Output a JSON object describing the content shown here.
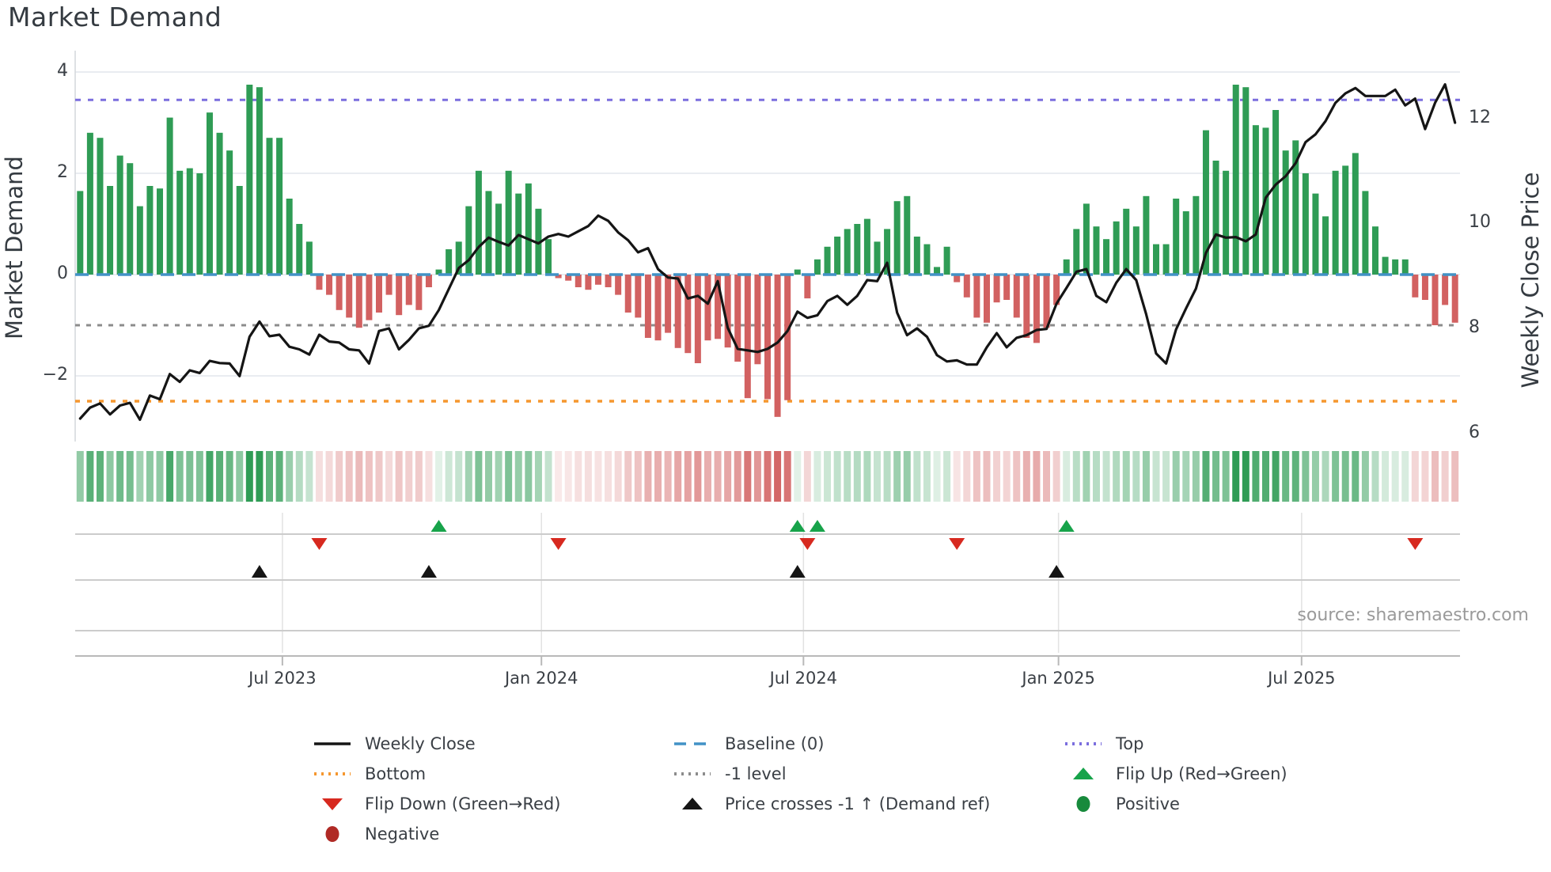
{
  "title": "Market Demand",
  "source_note": "source: sharemaestro.com",
  "axes": {
    "left": {
      "label": "Market Demand",
      "ticks": [
        {
          "label": "4",
          "value": 4
        },
        {
          "label": "2",
          "value": 2
        },
        {
          "label": "0",
          "value": 0
        },
        {
          "label": "−2",
          "value": -2
        }
      ]
    },
    "right": {
      "label": "Weekly Close Price",
      "ticks": [
        {
          "label": "12",
          "value": 12
        },
        {
          "label": "10",
          "value": 10
        },
        {
          "label": "8",
          "value": 8
        },
        {
          "label": "6",
          "value": 6
        }
      ]
    },
    "x": {
      "ticks": [
        {
          "label": "Jul 2023",
          "week": 20.3
        },
        {
          "label": "Jan 2024",
          "week": 46.3
        },
        {
          "label": "Jul 2024",
          "week": 72.6
        },
        {
          "label": "Jan 2025",
          "week": 98.2
        },
        {
          "label": "Jul 2025",
          "week": 122.6
        }
      ]
    }
  },
  "colors": {
    "bar_positive": "#2f9c55",
    "bar_negative": "#d26161",
    "price_line": "#151515",
    "baseline": "#4292c6",
    "top_line": "#7b6ede",
    "bottom_line": "#f5972f",
    "minus1_line": "#8c8c8c",
    "flip_up": "#17a34a",
    "flip_down": "#d7291f",
    "positive_dot": "#178a3c",
    "negative_dot": "#b02a25",
    "gridline": "#e9ecf1",
    "row_line": "#cccccc",
    "spine": "#b9b9b9",
    "text": "#3a3f45",
    "muted_text": "#9a9a9a"
  },
  "legend": {
    "columns": [
      {
        "items": [
          {
            "label": "Weekly Close",
            "swatch": "solid-line",
            "color": "#151515"
          },
          {
            "label": "Bottom",
            "swatch": "dotted-line",
            "color": "#f5972f"
          },
          {
            "label": "Flip Down (Green→Red)",
            "swatch": "triangle-down",
            "color": "#d7291f"
          },
          {
            "label": "Negative",
            "swatch": "circle",
            "color": "#b02a25"
          }
        ]
      },
      {
        "items": [
          {
            "label": "Baseline (0)",
            "swatch": "dashed-line",
            "color": "#4292c6"
          },
          {
            "label": "-1 level",
            "swatch": "dotted-line",
            "color": "#8c8c8c"
          },
          {
            "label": "Price crosses -1 ↑ (Demand ref)",
            "swatch": "triangle-up",
            "color": "#151515"
          }
        ]
      },
      {
        "items": [
          {
            "label": "Top",
            "swatch": "dotted-line",
            "color": "#7b6ede"
          },
          {
            "label": "Flip Up (Red→Green)",
            "swatch": "triangle-up",
            "color": "#17a34a"
          },
          {
            "label": "Positive",
            "swatch": "circle",
            "color": "#178a3c"
          }
        ]
      }
    ]
  },
  "chart_data": {
    "type": "bar+line",
    "title": "Market Demand",
    "x_unit": "week_index",
    "n_weeks": 139,
    "approx_period": "weekly bars, ticks labeled Jul 2023 through Jul 2025",
    "ylabel_left": "Market Demand",
    "ylabel_right": "Weekly Close Price",
    "demand_ylim": [
      -3.3,
      4.45
    ],
    "price_tick_values": [
      12,
      10,
      8,
      6
    ],
    "grid": "horizontal only in main panel, vertical only in marker band",
    "legend_position": "below chart, three columns",
    "reference_lines": {
      "top": 3.45,
      "baseline": 0,
      "minus1": -1,
      "bottom": -2.5
    },
    "series": [
      {
        "name": "Market Demand (bars)",
        "axis": "left",
        "values": [
          1.65,
          2.8,
          2.7,
          1.75,
          2.35,
          2.2,
          1.35,
          1.75,
          1.7,
          3.1,
          2.05,
          2.1,
          2.0,
          3.2,
          2.8,
          2.45,
          1.75,
          3.75,
          3.7,
          2.7,
          2.7,
          1.5,
          1.0,
          0.65,
          -0.3,
          -0.4,
          -0.7,
          -0.85,
          -1.05,
          -0.9,
          -0.75,
          -0.4,
          -0.8,
          -0.6,
          -0.7,
          -0.25,
          0.1,
          0.5,
          0.65,
          1.35,
          2.05,
          1.65,
          1.4,
          2.05,
          1.6,
          1.8,
          1.3,
          0.7,
          -0.07,
          -0.12,
          -0.25,
          -0.3,
          -0.2,
          -0.25,
          -0.4,
          -0.75,
          -0.85,
          -1.25,
          -1.3,
          -1.15,
          -1.45,
          -1.55,
          -1.75,
          -1.3,
          -1.27,
          -1.44,
          -1.72,
          -2.44,
          -1.77,
          -2.46,
          -2.81,
          -2.48,
          0.1,
          -0.47,
          0.3,
          0.55,
          0.75,
          0.9,
          1.0,
          1.1,
          0.65,
          0.9,
          1.45,
          1.55,
          0.75,
          0.6,
          0.15,
          0.55,
          -0.15,
          -0.45,
          -0.85,
          -0.95,
          -0.55,
          -0.5,
          -0.85,
          -1.25,
          -1.35,
          -1.05,
          -0.6,
          0.3,
          0.9,
          1.4,
          0.95,
          0.7,
          1.05,
          1.3,
          0.95,
          1.55,
          0.6,
          0.6,
          1.5,
          1.25,
          1.55,
          2.85,
          2.25,
          2.05,
          3.75,
          3.7,
          2.95,
          2.9,
          3.25,
          2.45,
          2.65,
          2.0,
          1.6,
          1.15,
          2.05,
          2.15,
          2.4,
          1.65,
          0.95,
          0.35,
          0.3,
          0.3,
          -0.45,
          -0.5,
          -1.0,
          -0.6,
          -0.95
        ]
      },
      {
        "name": "Weekly Close (line)",
        "axis": "right",
        "values": [
          6.28,
          6.49,
          6.57,
          6.36,
          6.53,
          6.58,
          6.26,
          6.72,
          6.65,
          7.13,
          6.98,
          7.2,
          7.15,
          7.38,
          7.34,
          7.33,
          7.09,
          7.84,
          8.13,
          7.85,
          7.88,
          7.65,
          7.6,
          7.5,
          7.88,
          7.75,
          7.73,
          7.6,
          7.58,
          7.33,
          7.95,
          8.0,
          7.6,
          7.78,
          8.0,
          8.05,
          8.35,
          8.75,
          9.15,
          9.3,
          9.55,
          9.73,
          9.65,
          9.58,
          9.78,
          9.7,
          9.62,
          9.75,
          9.8,
          9.75,
          9.85,
          9.95,
          10.15,
          10.05,
          9.83,
          9.68,
          9.45,
          9.53,
          9.13,
          8.97,
          8.95,
          8.57,
          8.62,
          8.47,
          8.9,
          8.01,
          7.61,
          7.58,
          7.55,
          7.61,
          7.73,
          7.95,
          8.32,
          8.2,
          8.25,
          8.52,
          8.62,
          8.45,
          8.62,
          8.92,
          8.9,
          9.25,
          8.3,
          7.87,
          8.0,
          7.84,
          7.49,
          7.37,
          7.39,
          7.31,
          7.31,
          7.64,
          7.91,
          7.64,
          7.82,
          7.87,
          7.97,
          7.99,
          8.47,
          8.77,
          9.08,
          9.13,
          8.62,
          8.5,
          8.87,
          9.13,
          8.92,
          8.27,
          7.52,
          7.33,
          7.98,
          8.38,
          8.76,
          9.44,
          9.79,
          9.73,
          9.74,
          9.66,
          9.79,
          10.49,
          10.74,
          10.9,
          11.15,
          11.55,
          11.7,
          11.95,
          12.3,
          12.48,
          12.58,
          12.43,
          12.43,
          12.43,
          12.55,
          12.25,
          12.38,
          11.8,
          12.3,
          12.65,
          11.92
        ]
      }
    ],
    "heatmap": "strip below main chart: one cell per week, green tint for positive demand, red tint for negative, opacity scales with magnitude",
    "markers": {
      "flip_up_weeks": [
        36,
        72,
        74,
        99
      ],
      "flip_down_weeks": [
        24,
        48,
        73,
        88,
        134
      ],
      "price_cross_minus1_weeks": [
        18,
        35,
        72,
        98
      ]
    }
  }
}
